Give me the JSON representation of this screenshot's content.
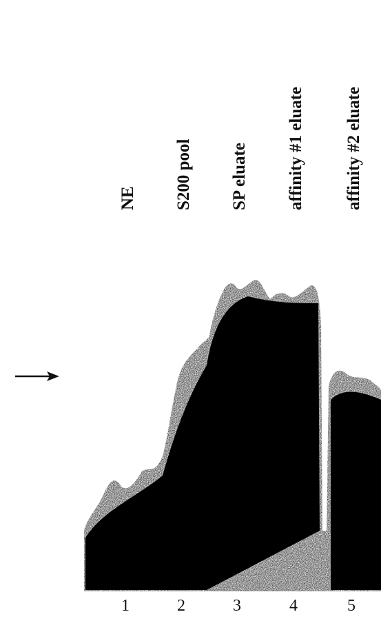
{
  "lanes": [
    {
      "label": "NE",
      "number": "1"
    },
    {
      "label": "S200 pool",
      "number": "2"
    },
    {
      "label": "SP eluate",
      "number": "3"
    },
    {
      "label": "affinity #1 eluate",
      "number": "4"
    },
    {
      "label": "affinity #2 eluate",
      "number": "5"
    }
  ]
}
